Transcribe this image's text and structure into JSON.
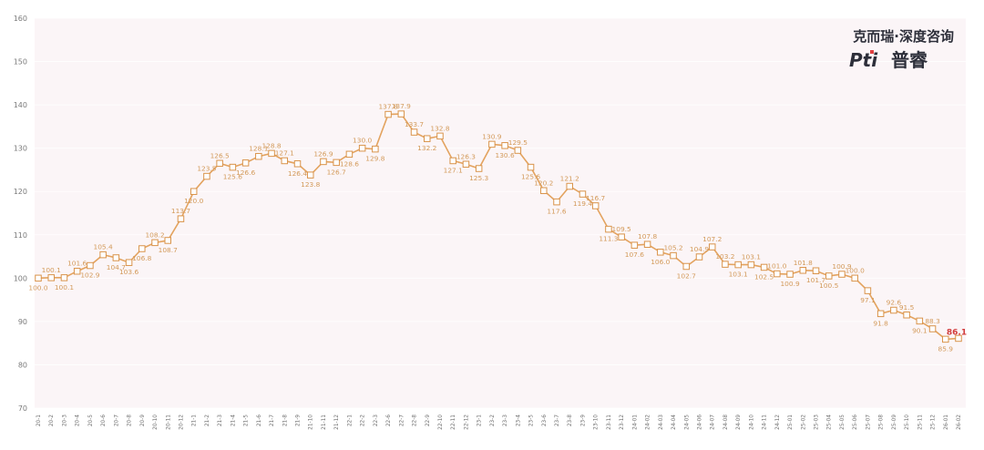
{
  "logo": {
    "line1": "克而瑞·深度咨询",
    "brand_prefix": "Pti",
    "brand_suffix": "普睿"
  },
  "colors": {
    "line": "#e3a35f",
    "marker_fill": "#ffffff",
    "marker_stroke": "#d9934a",
    "plot_bg": "#fbf5f7",
    "grid": "#ffffff",
    "label": "#d39a5a",
    "last_label": "#d23b3b"
  },
  "chart_data": {
    "type": "line",
    "ylim": [
      70,
      160
    ],
    "yticks": [
      70,
      80,
      90,
      100,
      110,
      120,
      130,
      140,
      150,
      160
    ],
    "grid": false,
    "categories": [
      "20-1",
      "20-2",
      "20-3",
      "20-4",
      "20-5",
      "20-6",
      "20-7",
      "20-8",
      "20-9",
      "20-10",
      "20-11",
      "20-12",
      "21-1",
      "21-2",
      "21-3",
      "21-4",
      "21-5",
      "21-6",
      "21-7",
      "21-8",
      "21-9",
      "21-10",
      "21-11",
      "21-12",
      "22-1",
      "22-2",
      "22-3",
      "22-6",
      "22-7",
      "22-8",
      "22-9",
      "22-10",
      "22-11",
      "22-12",
      "23-1",
      "23-2",
      "23-3",
      "23-4",
      "23-5",
      "23-6",
      "23-7",
      "23-8",
      "23-9",
      "23-10",
      "23-11",
      "23-12",
      "24-01",
      "24-02",
      "24-03",
      "24-04",
      "24-05",
      "24-06",
      "24-07",
      "24-08",
      "24-09",
      "24-10",
      "24-11",
      "24-12",
      "25-01",
      "25-02",
      "25-03",
      "25-04",
      "25-05",
      "25-06",
      "25-07",
      "25-08",
      "25-09",
      "25-10",
      "25-11",
      "25-12",
      "26-01",
      "26-02"
    ],
    "values": [
      100.0,
      100.1,
      100.1,
      101.6,
      102.9,
      105.4,
      104.7,
      103.6,
      106.8,
      108.2,
      108.7,
      113.7,
      120.0,
      123.5,
      126.5,
      125.6,
      126.6,
      128.1,
      128.8,
      127.1,
      126.4,
      123.8,
      126.9,
      126.7,
      128.6,
      130.0,
      129.8,
      137.8,
      137.9,
      133.7,
      132.2,
      132.8,
      127.1,
      126.3,
      125.3,
      130.9,
      130.6,
      129.5,
      125.6,
      120.2,
      117.6,
      121.2,
      119.4,
      116.7,
      111.3,
      109.5,
      107.6,
      107.8,
      106.0,
      105.2,
      102.7,
      104.9,
      107.2,
      103.2,
      103.1,
      103.1,
      102.5,
      101.0,
      100.9,
      101.8,
      101.7,
      100.5,
      100.9,
      100.0,
      97.1,
      91.8,
      92.6,
      91.5,
      90.1,
      88.3,
      85.9,
      86.1
    ],
    "data_labels": [
      "100.0",
      "100.1",
      "100.1",
      "101.6",
      "102.9",
      "105.4",
      "104.7",
      "103.6",
      "106.8",
      "108.2",
      "108.7",
      "113.7",
      "120.0",
      "123.5",
      "126.5",
      "125.6",
      "126.6",
      "128.1",
      "128.8",
      "127.1",
      "126.4",
      "123.8",
      "126.9",
      "126.7",
      "128.6",
      "130.0",
      "129.8",
      "137.8",
      "137.9",
      "133.7",
      "132.2",
      "132.8",
      "127.1",
      "126.3",
      "125.3",
      "130.9",
      "130.6",
      "129.5",
      "125.6",
      "120.2",
      "117.6",
      "121.2",
      "119.4",
      "116.7",
      "111.3",
      "109.5",
      "107.6",
      "107.8",
      "106.0",
      "105.2",
      "102.7",
      "104.9",
      "107.2",
      "103.2",
      "103.1",
      "103.1",
      "102.5",
      "101.0",
      "100.9",
      "101.8",
      "101.7",
      "100.5",
      "100.9",
      "100.0",
      "97.1",
      "91.8",
      "92.6",
      "91.5",
      "90.1",
      "88.3",
      "85.9",
      "86.1"
    ]
  }
}
